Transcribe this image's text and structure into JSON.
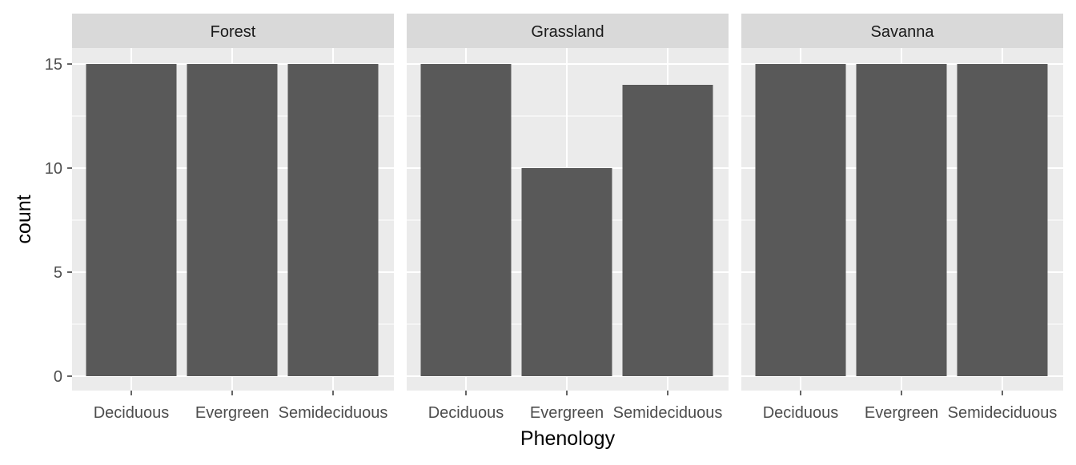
{
  "chart_data": {
    "type": "bar",
    "xlabel": "Phenology",
    "ylabel": "count",
    "ylim": [
      0,
      15.6
    ],
    "yticks": [
      0,
      5,
      10,
      15
    ],
    "grid": true,
    "categories": [
      "Deciduous",
      "Evergreen",
      "Semideciduous"
    ],
    "facets": [
      {
        "name": "Forest",
        "values": [
          15,
          15,
          15
        ]
      },
      {
        "name": "Grassland",
        "values": [
          15,
          10,
          14
        ]
      },
      {
        "name": "Savanna",
        "values": [
          15,
          15,
          15
        ]
      }
    ],
    "colors": {
      "bar": "#595959",
      "panel": "#EBEBEB",
      "strip": "#D9D9D9",
      "grid": "#FFFFFF",
      "text": "#4D4D4D"
    }
  }
}
